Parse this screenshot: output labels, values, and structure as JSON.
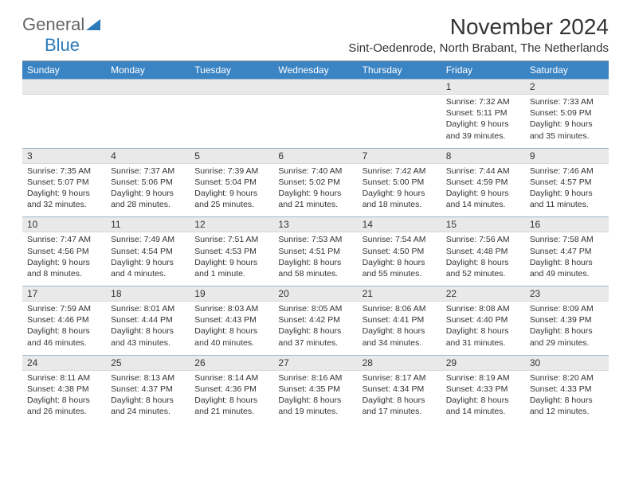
{
  "logo": {
    "text1": "General",
    "text2": "Blue"
  },
  "title": "November 2024",
  "location": "Sint-Oedenrode, North Brabant, The Netherlands",
  "colors": {
    "header_bg": "#3a84c4",
    "header_text": "#ffffff",
    "daynum_bg": "#e9e9e9",
    "rule": "#9db8d0",
    "text": "#333333",
    "logo_gray": "#666666",
    "logo_blue": "#2c7bb8"
  },
  "day_labels": [
    "Sunday",
    "Monday",
    "Tuesday",
    "Wednesday",
    "Thursday",
    "Friday",
    "Saturday"
  ],
  "weeks": [
    [
      null,
      null,
      null,
      null,
      null,
      {
        "n": "1",
        "sr": "7:32 AM",
        "ss": "5:11 PM",
        "dh": "9",
        "dm": "39"
      },
      {
        "n": "2",
        "sr": "7:33 AM",
        "ss": "5:09 PM",
        "dh": "9",
        "dm": "35"
      }
    ],
    [
      {
        "n": "3",
        "sr": "7:35 AM",
        "ss": "5:07 PM",
        "dh": "9",
        "dm": "32"
      },
      {
        "n": "4",
        "sr": "7:37 AM",
        "ss": "5:06 PM",
        "dh": "9",
        "dm": "28"
      },
      {
        "n": "5",
        "sr": "7:39 AM",
        "ss": "5:04 PM",
        "dh": "9",
        "dm": "25"
      },
      {
        "n": "6",
        "sr": "7:40 AM",
        "ss": "5:02 PM",
        "dh": "9",
        "dm": "21"
      },
      {
        "n": "7",
        "sr": "7:42 AM",
        "ss": "5:00 PM",
        "dh": "9",
        "dm": "18"
      },
      {
        "n": "8",
        "sr": "7:44 AM",
        "ss": "4:59 PM",
        "dh": "9",
        "dm": "14"
      },
      {
        "n": "9",
        "sr": "7:46 AM",
        "ss": "4:57 PM",
        "dh": "9",
        "dm": "11"
      }
    ],
    [
      {
        "n": "10",
        "sr": "7:47 AM",
        "ss": "4:56 PM",
        "dh": "9",
        "dm": "8"
      },
      {
        "n": "11",
        "sr": "7:49 AM",
        "ss": "4:54 PM",
        "dh": "9",
        "dm": "4"
      },
      {
        "n": "12",
        "sr": "7:51 AM",
        "ss": "4:53 PM",
        "dh": "9",
        "dm": "1",
        "unit": "minute"
      },
      {
        "n": "13",
        "sr": "7:53 AM",
        "ss": "4:51 PM",
        "dh": "8",
        "dm": "58"
      },
      {
        "n": "14",
        "sr": "7:54 AM",
        "ss": "4:50 PM",
        "dh": "8",
        "dm": "55"
      },
      {
        "n": "15",
        "sr": "7:56 AM",
        "ss": "4:48 PM",
        "dh": "8",
        "dm": "52"
      },
      {
        "n": "16",
        "sr": "7:58 AM",
        "ss": "4:47 PM",
        "dh": "8",
        "dm": "49"
      }
    ],
    [
      {
        "n": "17",
        "sr": "7:59 AM",
        "ss": "4:46 PM",
        "dh": "8",
        "dm": "46"
      },
      {
        "n": "18",
        "sr": "8:01 AM",
        "ss": "4:44 PM",
        "dh": "8",
        "dm": "43"
      },
      {
        "n": "19",
        "sr": "8:03 AM",
        "ss": "4:43 PM",
        "dh": "8",
        "dm": "40"
      },
      {
        "n": "20",
        "sr": "8:05 AM",
        "ss": "4:42 PM",
        "dh": "8",
        "dm": "37"
      },
      {
        "n": "21",
        "sr": "8:06 AM",
        "ss": "4:41 PM",
        "dh": "8",
        "dm": "34"
      },
      {
        "n": "22",
        "sr": "8:08 AM",
        "ss": "4:40 PM",
        "dh": "8",
        "dm": "31"
      },
      {
        "n": "23",
        "sr": "8:09 AM",
        "ss": "4:39 PM",
        "dh": "8",
        "dm": "29"
      }
    ],
    [
      {
        "n": "24",
        "sr": "8:11 AM",
        "ss": "4:38 PM",
        "dh": "8",
        "dm": "26"
      },
      {
        "n": "25",
        "sr": "8:13 AM",
        "ss": "4:37 PM",
        "dh": "8",
        "dm": "24"
      },
      {
        "n": "26",
        "sr": "8:14 AM",
        "ss": "4:36 PM",
        "dh": "8",
        "dm": "21"
      },
      {
        "n": "27",
        "sr": "8:16 AM",
        "ss": "4:35 PM",
        "dh": "8",
        "dm": "19"
      },
      {
        "n": "28",
        "sr": "8:17 AM",
        "ss": "4:34 PM",
        "dh": "8",
        "dm": "17"
      },
      {
        "n": "29",
        "sr": "8:19 AM",
        "ss": "4:33 PM",
        "dh": "8",
        "dm": "14"
      },
      {
        "n": "30",
        "sr": "8:20 AM",
        "ss": "4:33 PM",
        "dh": "8",
        "dm": "12"
      }
    ]
  ]
}
